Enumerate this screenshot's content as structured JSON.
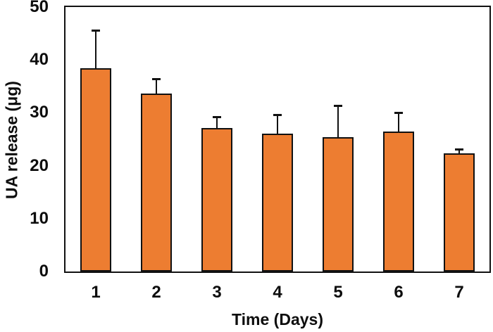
{
  "chart_data": {
    "type": "bar",
    "title": "",
    "xlabel": "Time (Days)",
    "ylabel": "UA release (μg)",
    "categories": [
      "1",
      "2",
      "3",
      "4",
      "5",
      "6",
      "7"
    ],
    "series": [
      {
        "name": "UA release",
        "values": [
          38.4,
          33.6,
          27.1,
          26.1,
          25.4,
          26.5,
          22.3
        ],
        "errors_upper": [
          7.2,
          2.8,
          2.2,
          3.5,
          6.0,
          3.6,
          0.8
        ]
      }
    ],
    "ylim": [
      0,
      50
    ],
    "yticks": [
      0,
      10,
      20,
      30,
      40,
      50
    ],
    "grid": false,
    "legend": null,
    "bar_color": "#ED7D31",
    "bar_border_color": "#111111",
    "axis_color": "#111111",
    "background_color": "#ffffff"
  }
}
